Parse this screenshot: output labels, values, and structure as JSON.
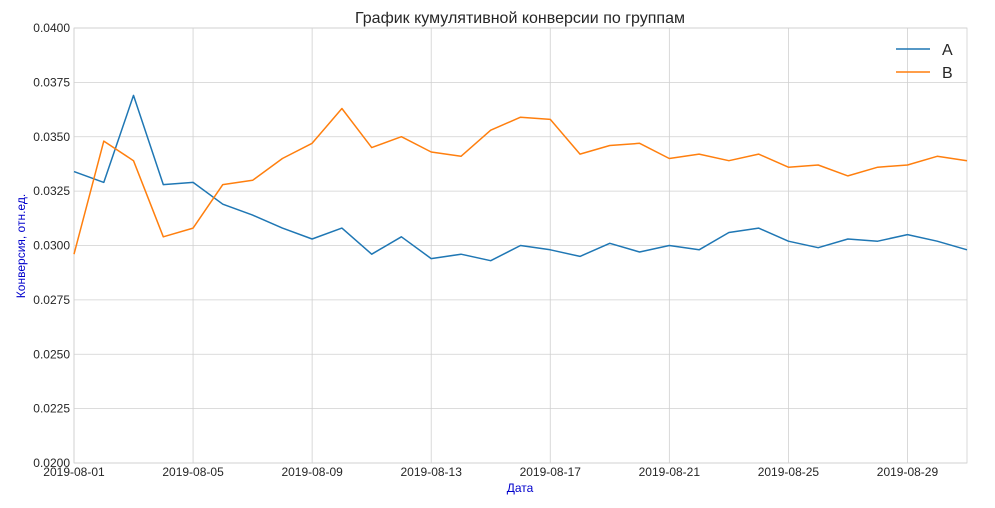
{
  "chart_data": {
    "type": "line",
    "title": "График кумулятивной конверсии по группам",
    "xlabel": "Дата",
    "ylabel": "Конверсия, отн.ед.",
    "label_color": "#0000cc",
    "ylim": [
      0.02,
      0.04
    ],
    "yticks": [
      "0.0200",
      "0.0225",
      "0.0250",
      "0.0275",
      "0.0300",
      "0.0325",
      "0.0350",
      "0.0375",
      "0.0400"
    ],
    "xlim": [
      "2019-08-01",
      "2019-08-31"
    ],
    "xticks": [
      "2019-08-01",
      "2019-08-05",
      "2019-08-09",
      "2019-08-13",
      "2019-08-17",
      "2019-08-21",
      "2019-08-25",
      "2019-08-29"
    ],
    "grid": true,
    "legend_position": "top-right",
    "x": [
      "2019-08-01",
      "2019-08-02",
      "2019-08-03",
      "2019-08-04",
      "2019-08-05",
      "2019-08-06",
      "2019-08-07",
      "2019-08-08",
      "2019-08-09",
      "2019-08-10",
      "2019-08-11",
      "2019-08-12",
      "2019-08-13",
      "2019-08-14",
      "2019-08-15",
      "2019-08-16",
      "2019-08-17",
      "2019-08-18",
      "2019-08-19",
      "2019-08-20",
      "2019-08-21",
      "2019-08-22",
      "2019-08-23",
      "2019-08-24",
      "2019-08-25",
      "2019-08-26",
      "2019-08-27",
      "2019-08-28",
      "2019-08-29",
      "2019-08-30",
      "2019-08-31"
    ],
    "series": [
      {
        "name": "A",
        "color": "#1f77b4",
        "values": [
          0.0334,
          0.0329,
          0.0369,
          0.0328,
          0.0329,
          0.0319,
          0.0314,
          0.0308,
          0.0303,
          0.0308,
          0.0296,
          0.0304,
          0.0294,
          0.0296,
          0.0293,
          0.03,
          0.0298,
          0.0295,
          0.0301,
          0.0297,
          0.03,
          0.0298,
          0.0306,
          0.0308,
          0.0302,
          0.0299,
          0.0303,
          0.0302,
          0.0305,
          0.0302,
          0.0298
        ]
      },
      {
        "name": "B",
        "color": "#ff7f0e",
        "values": [
          0.0296,
          0.0348,
          0.0339,
          0.0304,
          0.0308,
          0.0328,
          0.033,
          0.034,
          0.0347,
          0.0363,
          0.0345,
          0.035,
          0.0343,
          0.0341,
          0.0353,
          0.0359,
          0.0358,
          0.0342,
          0.0346,
          0.0347,
          0.034,
          0.0342,
          0.0339,
          0.0342,
          0.0336,
          0.0337,
          0.0332,
          0.0336,
          0.0337,
          0.0341,
          0.0339
        ]
      }
    ]
  }
}
